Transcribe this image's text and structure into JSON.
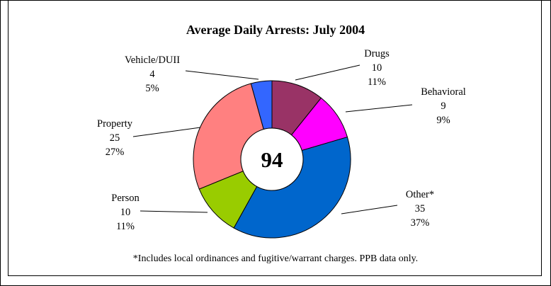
{
  "chart_data": {
    "type": "pie",
    "title": "Average Daily Arrests: July 2004",
    "center_label": "94",
    "footnote": "*Includes local ordinances and fugitive/warrant charges. PPB data only.",
    "slices": [
      {
        "name": "Drugs",
        "value": 10,
        "percent": "11%",
        "color": "#993366"
      },
      {
        "name": "Behavioral",
        "value": 9,
        "percent": "9%",
        "color": "#ff00ff"
      },
      {
        "name": "Other*",
        "value": 35,
        "percent": "37%",
        "color": "#0066cc"
      },
      {
        "name": "Person",
        "value": 10,
        "percent": "11%",
        "color": "#99cc00"
      },
      {
        "name": "Property",
        "value": 25,
        "percent": "27%",
        "color": "#ff8080"
      },
      {
        "name": "Vehicle/DUII",
        "value": 4,
        "percent": "5%",
        "color": "#3366ff"
      }
    ]
  }
}
